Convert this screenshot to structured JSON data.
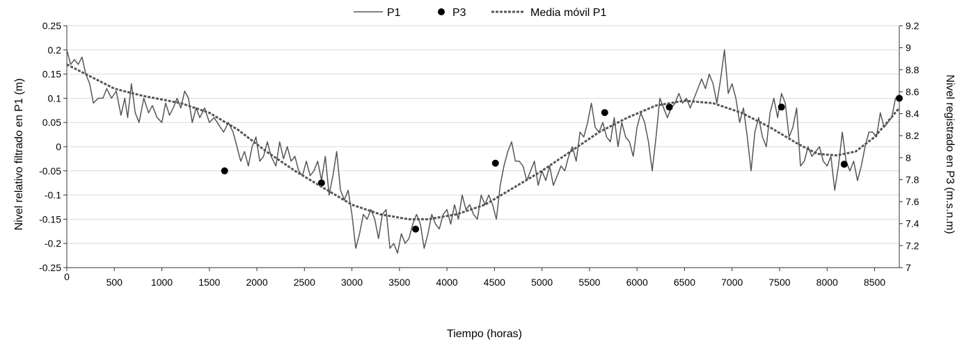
{
  "chart_data": {
    "type": "line",
    "xlabel": "Tiempo (horas)",
    "ylabel": "Nivel relativo filtrado en P1 (m)",
    "y2label": "Nivel registrado en P3 (m.s.n.m)",
    "xlim": [
      0,
      8760
    ],
    "ylim": [
      -0.25,
      0.25
    ],
    "y2lim": [
      7,
      9.2
    ],
    "x_ticks": [
      0,
      500,
      1000,
      1500,
      2000,
      2500,
      3000,
      3500,
      4000,
      4500,
      5000,
      5500,
      6000,
      6500,
      7000,
      7500,
      8000,
      8500
    ],
    "y_ticks": [
      "0.25",
      "0.2",
      "0.15",
      "0.1",
      "0.05",
      "0",
      "-0.05",
      "-0.1",
      "-0.15",
      "-0.2",
      "-0.25"
    ],
    "y2_ticks": [
      "9.2",
      "9",
      "8.8",
      "8.6",
      "8.4",
      "8.2",
      "8",
      "7.8",
      "7.6",
      "7.4",
      "7.2",
      "7"
    ],
    "grid": "horizontal",
    "legend_position": "top-center",
    "series": [
      {
        "name": "P1",
        "style": "solid",
        "color": "#555555",
        "axis": "left",
        "points": [
          [
            0,
            0.2
          ],
          [
            40,
            0.17
          ],
          [
            80,
            0.18
          ],
          [
            120,
            0.17
          ],
          [
            160,
            0.185
          ],
          [
            200,
            0.15
          ],
          [
            240,
            0.13
          ],
          [
            280,
            0.09
          ],
          [
            330,
            0.1
          ],
          [
            380,
            0.1
          ],
          [
            420,
            0.12
          ],
          [
            470,
            0.1
          ],
          [
            520,
            0.115
          ],
          [
            570,
            0.065
          ],
          [
            610,
            0.1
          ],
          [
            640,
            0.06
          ],
          [
            680,
            0.13
          ],
          [
            720,
            0.07
          ],
          [
            760,
            0.05
          ],
          [
            810,
            0.1
          ],
          [
            860,
            0.07
          ],
          [
            900,
            0.085
          ],
          [
            950,
            0.06
          ],
          [
            1000,
            0.05
          ],
          [
            1040,
            0.09
          ],
          [
            1080,
            0.065
          ],
          [
            1120,
            0.08
          ],
          [
            1160,
            0.1
          ],
          [
            1200,
            0.08
          ],
          [
            1240,
            0.115
          ],
          [
            1280,
            0.1
          ],
          [
            1320,
            0.05
          ],
          [
            1360,
            0.08
          ],
          [
            1400,
            0.06
          ],
          [
            1450,
            0.08
          ],
          [
            1500,
            0.05
          ],
          [
            1550,
            0.06
          ],
          [
            1600,
            0.045
          ],
          [
            1650,
            0.03
          ],
          [
            1700,
            0.05
          ],
          [
            1750,
            0.03
          ],
          [
            1790,
            0.0
          ],
          [
            1830,
            -0.03
          ],
          [
            1870,
            -0.01
          ],
          [
            1910,
            -0.04
          ],
          [
            1950,
            0.0
          ],
          [
            1990,
            0.02
          ],
          [
            2030,
            -0.03
          ],
          [
            2070,
            -0.02
          ],
          [
            2110,
            0.01
          ],
          [
            2150,
            -0.02
          ],
          [
            2200,
            -0.04
          ],
          [
            2240,
            0.01
          ],
          [
            2280,
            -0.025
          ],
          [
            2320,
            0.0
          ],
          [
            2360,
            -0.03
          ],
          [
            2400,
            -0.02
          ],
          [
            2440,
            -0.05
          ],
          [
            2480,
            -0.06
          ],
          [
            2520,
            -0.03
          ],
          [
            2560,
            -0.06
          ],
          [
            2600,
            -0.05
          ],
          [
            2640,
            -0.03
          ],
          [
            2680,
            -0.07
          ],
          [
            2720,
            -0.02
          ],
          [
            2760,
            -0.1
          ],
          [
            2800,
            -0.06
          ],
          [
            2840,
            -0.01
          ],
          [
            2880,
            -0.09
          ],
          [
            2920,
            -0.11
          ],
          [
            2960,
            -0.09
          ],
          [
            3000,
            -0.14
          ],
          [
            3040,
            -0.21
          ],
          [
            3080,
            -0.18
          ],
          [
            3120,
            -0.14
          ],
          [
            3160,
            -0.15
          ],
          [
            3200,
            -0.13
          ],
          [
            3240,
            -0.15
          ],
          [
            3280,
            -0.19
          ],
          [
            3320,
            -0.14
          ],
          [
            3360,
            -0.13
          ],
          [
            3400,
            -0.21
          ],
          [
            3440,
            -0.2
          ],
          [
            3480,
            -0.22
          ],
          [
            3520,
            -0.18
          ],
          [
            3560,
            -0.2
          ],
          [
            3600,
            -0.19
          ],
          [
            3640,
            -0.16
          ],
          [
            3680,
            -0.14
          ],
          [
            3720,
            -0.16
          ],
          [
            3760,
            -0.21
          ],
          [
            3800,
            -0.18
          ],
          [
            3840,
            -0.14
          ],
          [
            3880,
            -0.16
          ],
          [
            3920,
            -0.17
          ],
          [
            3960,
            -0.14
          ],
          [
            4000,
            -0.13
          ],
          [
            4040,
            -0.16
          ],
          [
            4080,
            -0.12
          ],
          [
            4120,
            -0.15
          ],
          [
            4160,
            -0.1
          ],
          [
            4200,
            -0.13
          ],
          [
            4240,
            -0.12
          ],
          [
            4280,
            -0.14
          ],
          [
            4320,
            -0.15
          ],
          [
            4360,
            -0.1
          ],
          [
            4400,
            -0.12
          ],
          [
            4440,
            -0.1
          ],
          [
            4480,
            -0.12
          ],
          [
            4520,
            -0.15
          ],
          [
            4560,
            -0.08
          ],
          [
            4600,
            -0.04
          ],
          [
            4640,
            -0.01
          ],
          [
            4680,
            0.01
          ],
          [
            4720,
            -0.03
          ],
          [
            4760,
            -0.03
          ],
          [
            4800,
            -0.04
          ],
          [
            4840,
            -0.07
          ],
          [
            4880,
            -0.05
          ],
          [
            4920,
            -0.03
          ],
          [
            4960,
            -0.08
          ],
          [
            5000,
            -0.05
          ],
          [
            5040,
            -0.07
          ],
          [
            5080,
            -0.04
          ],
          [
            5120,
            -0.08
          ],
          [
            5160,
            -0.06
          ],
          [
            5200,
            -0.04
          ],
          [
            5240,
            -0.05
          ],
          [
            5280,
            -0.02
          ],
          [
            5320,
            0.0
          ],
          [
            5360,
            -0.03
          ],
          [
            5400,
            0.03
          ],
          [
            5440,
            0.02
          ],
          [
            5480,
            0.05
          ],
          [
            5520,
            0.09
          ],
          [
            5560,
            0.04
          ],
          [
            5600,
            0.03
          ],
          [
            5640,
            0.05
          ],
          [
            5680,
            0.02
          ],
          [
            5720,
            0.01
          ],
          [
            5760,
            0.06
          ],
          [
            5800,
            0.0
          ],
          [
            5840,
            0.05
          ],
          [
            5880,
            0.02
          ],
          [
            5920,
            0.01
          ],
          [
            5960,
            -0.02
          ],
          [
            6000,
            0.04
          ],
          [
            6040,
            0.07
          ],
          [
            6080,
            0.05
          ],
          [
            6120,
            0.01
          ],
          [
            6160,
            -0.05
          ],
          [
            6200,
            0.02
          ],
          [
            6240,
            0.1
          ],
          [
            6280,
            0.08
          ],
          [
            6320,
            0.06
          ],
          [
            6360,
            0.08
          ],
          [
            6400,
            0.09
          ],
          [
            6440,
            0.11
          ],
          [
            6480,
            0.09
          ],
          [
            6520,
            0.1
          ],
          [
            6560,
            0.08
          ],
          [
            6600,
            0.1
          ],
          [
            6640,
            0.12
          ],
          [
            6680,
            0.14
          ],
          [
            6720,
            0.12
          ],
          [
            6760,
            0.15
          ],
          [
            6800,
            0.13
          ],
          [
            6840,
            0.09
          ],
          [
            6880,
            0.14
          ],
          [
            6920,
            0.2
          ],
          [
            6960,
            0.11
          ],
          [
            7000,
            0.13
          ],
          [
            7040,
            0.1
          ],
          [
            7080,
            0.05
          ],
          [
            7120,
            0.08
          ],
          [
            7160,
            0.02
          ],
          [
            7200,
            -0.05
          ],
          [
            7240,
            0.03
          ],
          [
            7280,
            0.06
          ],
          [
            7320,
            0.02
          ],
          [
            7360,
            0.0
          ],
          [
            7400,
            0.07
          ],
          [
            7440,
            0.1
          ],
          [
            7480,
            0.06
          ],
          [
            7520,
            0.11
          ],
          [
            7560,
            0.09
          ],
          [
            7600,
            0.02
          ],
          [
            7640,
            0.04
          ],
          [
            7680,
            0.08
          ],
          [
            7720,
            -0.04
          ],
          [
            7760,
            -0.03
          ],
          [
            7800,
            0.0
          ],
          [
            7840,
            -0.02
          ],
          [
            7880,
            -0.01
          ],
          [
            7920,
            0.0
          ],
          [
            7960,
            -0.03
          ],
          [
            8000,
            -0.04
          ],
          [
            8040,
            -0.02
          ],
          [
            8080,
            -0.09
          ],
          [
            8120,
            -0.04
          ],
          [
            8160,
            0.03
          ],
          [
            8200,
            -0.03
          ],
          [
            8240,
            -0.05
          ],
          [
            8280,
            -0.03
          ],
          [
            8320,
            -0.07
          ],
          [
            8360,
            -0.04
          ],
          [
            8400,
            0.0
          ],
          [
            8440,
            0.03
          ],
          [
            8480,
            0.03
          ],
          [
            8520,
            0.02
          ],
          [
            8560,
            0.07
          ],
          [
            8600,
            0.04
          ],
          [
            8640,
            0.05
          ],
          [
            8680,
            0.06
          ],
          [
            8720,
            0.1
          ],
          [
            8760,
            0.1
          ]
        ]
      },
      {
        "name": "P3",
        "style": "marker",
        "color": "#000000",
        "axis": "right",
        "points": [
          [
            1660,
            7.88
          ],
          [
            2680,
            7.77
          ],
          [
            3670,
            7.35
          ],
          [
            4510,
            7.95
          ],
          [
            5660,
            8.41
          ],
          [
            6340,
            8.46
          ],
          [
            7520,
            8.46
          ],
          [
            8180,
            7.94
          ],
          [
            8760,
            8.54
          ]
        ]
      },
      {
        "name": "Media móvil P1",
        "style": "dashed",
        "color": "#555555",
        "axis": "left",
        "points": [
          [
            0,
            0.17
          ],
          [
            300,
            0.14
          ],
          [
            500,
            0.12
          ],
          [
            800,
            0.105
          ],
          [
            1200,
            0.09
          ],
          [
            1500,
            0.07
          ],
          [
            1800,
            0.035
          ],
          [
            2100,
            -0.01
          ],
          [
            2400,
            -0.05
          ],
          [
            2700,
            -0.085
          ],
          [
            3000,
            -0.12
          ],
          [
            3300,
            -0.14
          ],
          [
            3600,
            -0.15
          ],
          [
            3800,
            -0.15
          ],
          [
            4100,
            -0.14
          ],
          [
            4400,
            -0.12
          ],
          [
            4700,
            -0.085
          ],
          [
            5000,
            -0.05
          ],
          [
            5300,
            -0.01
          ],
          [
            5600,
            0.03
          ],
          [
            5900,
            0.06
          ],
          [
            6200,
            0.085
          ],
          [
            6500,
            0.095
          ],
          [
            6800,
            0.09
          ],
          [
            7100,
            0.07
          ],
          [
            7400,
            0.04
          ],
          [
            7700,
            0.005
          ],
          [
            7900,
            -0.015
          ],
          [
            8100,
            -0.018
          ],
          [
            8300,
            -0.01
          ],
          [
            8500,
            0.02
          ],
          [
            8760,
            0.08
          ]
        ]
      }
    ]
  }
}
